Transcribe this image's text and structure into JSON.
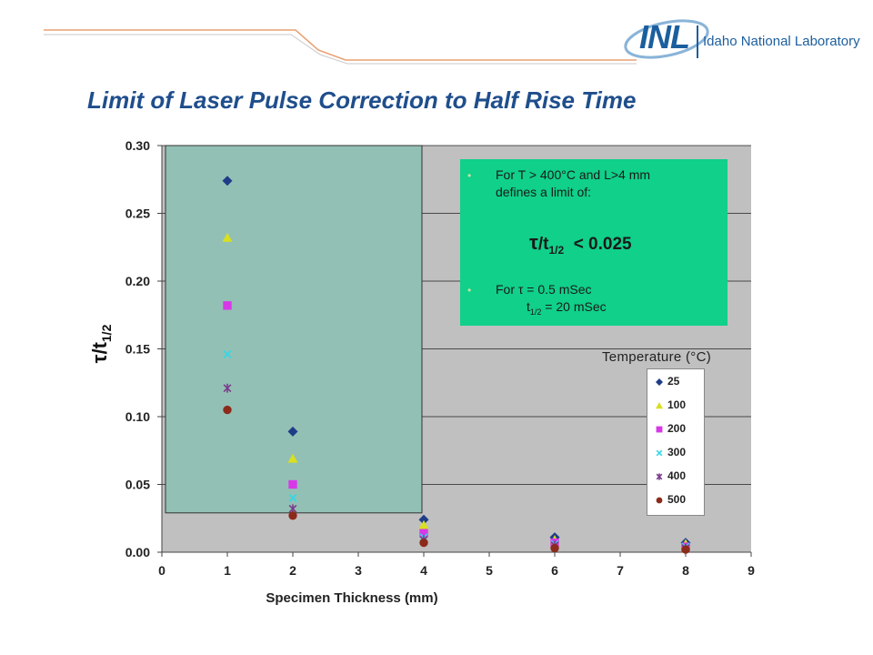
{
  "header": {
    "logo_text": "INL",
    "logo_name": "Idaho National Laboratory",
    "title": "Limit of Laser Pulse Correction to Half Rise Time"
  },
  "note": {
    "line1": "For T > 400°C and L>4 mm",
    "line2": "defines a limit of:",
    "formula_tau": "τ",
    "formula_t": "/t",
    "formula_sub": "1/2",
    "formula_rhs": "< 0.025",
    "line3": "For τ = 0.5 mSec",
    "line4_t": "t",
    "line4_sub": "1/2",
    "line4_rhs": " = 20 mSec"
  },
  "colors": {
    "plot_bg": "#c0c0c0",
    "shaded_region": "#93c0b4",
    "note_bg": "#10d08a",
    "title": "#1f4e8c"
  },
  "chart_data": {
    "type": "scatter",
    "xlabel": "Specimen Thickness (mm)",
    "ylabel": "τ/t1/2",
    "xlim": [
      0,
      9
    ],
    "ylim": [
      0,
      0.3
    ],
    "xticks": [
      "0",
      "1",
      "2",
      "3",
      "4",
      "5",
      "6",
      "7",
      "8",
      "9"
    ],
    "yticks": [
      "0.00",
      "0.05",
      "0.10",
      "0.15",
      "0.20",
      "0.25",
      "0.30"
    ],
    "grid": "horizontal",
    "legend_title": "Temperature (°C)",
    "legend_position": "right",
    "shaded_region": {
      "x": [
        0,
        4
      ],
      "y": [
        0.029,
        0.3
      ]
    },
    "series": [
      {
        "name": "25",
        "marker": "diamond",
        "color": "#1f3c88",
        "points": [
          [
            1,
            0.274
          ],
          [
            2,
            0.089
          ],
          [
            4,
            0.024
          ],
          [
            6,
            0.011
          ],
          [
            8,
            0.007
          ]
        ]
      },
      {
        "name": "100",
        "marker": "triangle",
        "color": "#d8e020",
        "points": [
          [
            1,
            0.232
          ],
          [
            2,
            0.069
          ],
          [
            4,
            0.02
          ],
          [
            6,
            0.009
          ],
          [
            8,
            0.006
          ]
        ]
      },
      {
        "name": "200",
        "marker": "square",
        "color": "#d838e8",
        "points": [
          [
            1,
            0.182
          ],
          [
            2,
            0.05
          ],
          [
            4,
            0.014
          ],
          [
            6,
            0.007
          ],
          [
            8,
            0.004
          ]
        ]
      },
      {
        "name": "300",
        "marker": "x",
        "color": "#30d8e8",
        "points": [
          [
            1,
            0.146
          ],
          [
            2,
            0.04
          ],
          [
            4,
            0.011
          ],
          [
            6,
            0.006
          ],
          [
            8,
            0.004
          ]
        ]
      },
      {
        "name": "400",
        "marker": "star",
        "color": "#7a3c8c",
        "points": [
          [
            1,
            0.121
          ],
          [
            2,
            0.032
          ],
          [
            4,
            0.009
          ],
          [
            6,
            0.005
          ],
          [
            8,
            0.003
          ]
        ]
      },
      {
        "name": "500",
        "marker": "circle",
        "color": "#8c2a1c",
        "points": [
          [
            1,
            0.105
          ],
          [
            2,
            0.027
          ],
          [
            4,
            0.007
          ],
          [
            6,
            0.003
          ],
          [
            8,
            0.002
          ]
        ]
      }
    ]
  }
}
